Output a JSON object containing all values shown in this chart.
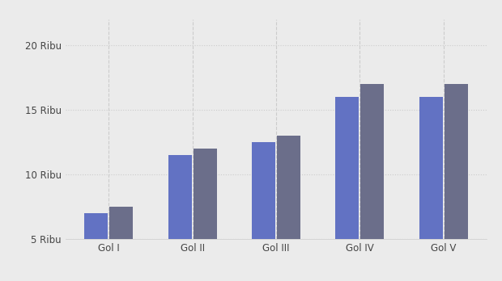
{
  "categories": [
    "Gol I",
    "Gol II",
    "Gol III",
    "Gol IV",
    "Gol V"
  ],
  "series1_values": [
    7000,
    11500,
    12500,
    16000,
    16000
  ],
  "series2_values": [
    7500,
    12000,
    13000,
    17000,
    17000
  ],
  "bar_color1": "#6272c3",
  "bar_color2": "#6b6e8a",
  "background_color": "#ebebeb",
  "ylim_min": 5000,
  "ylim_max": 22000,
  "yticks": [
    5000,
    10000,
    15000,
    20000
  ],
  "ytick_labels": [
    "5 Ribu",
    "10 Ribu",
    "15 Ribu",
    "20 Ribu"
  ],
  "bar_width": 0.28,
  "grid_color": "#cccccc",
  "vline_color": "#cccccc",
  "tick_fontsize": 8.5,
  "tick_color": "#444444",
  "figsize": [
    6.2,
    3.48
  ],
  "dpi": 100
}
